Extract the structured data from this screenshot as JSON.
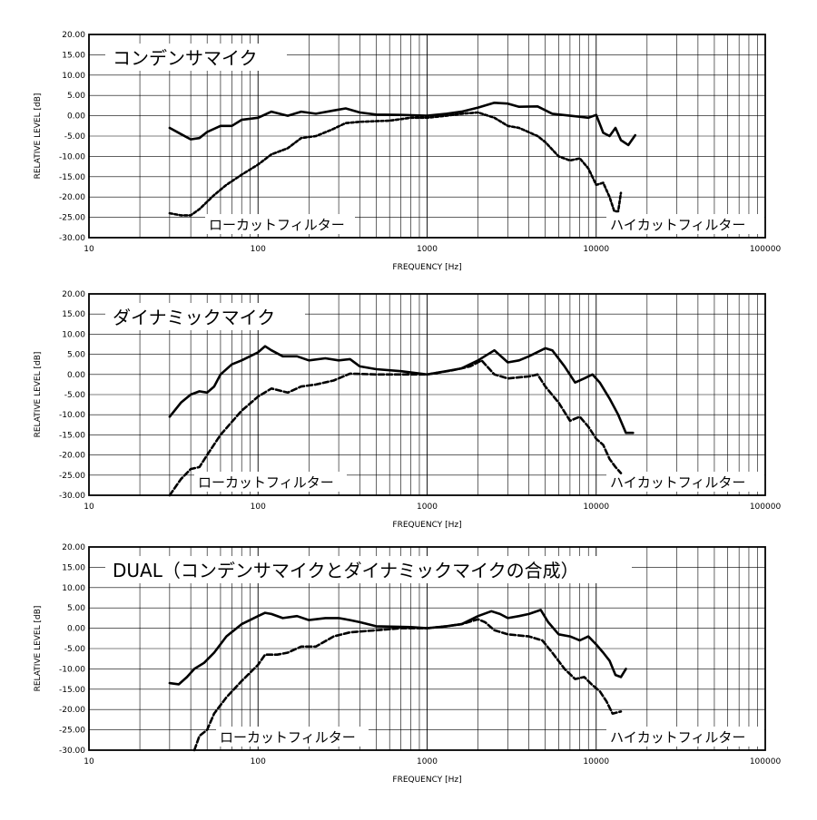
{
  "chart_data": [
    {
      "type": "line",
      "title": "コンデンサマイク",
      "xlabel": "FREQUENCY [Hz]",
      "ylabel": "RELATIVE LEVEL [dB]",
      "x_scale": "log",
      "xlim": [
        10,
        100000
      ],
      "ylim": [
        -30,
        20
      ],
      "x_ticks": [
        "10",
        "100",
        "1000",
        "10000",
        "100000"
      ],
      "y_ticks": [
        "20.00",
        "15.00",
        "10.00",
        "5.00",
        "0.00",
        "-5.00",
        "-10.00",
        "-15.00",
        "-20.00",
        "-25.00",
        "-30.00"
      ],
      "grid": true,
      "annotations": {
        "low_cut": "ローカットフィルター",
        "high_cut": "ハイカットフィルター"
      },
      "series": [
        {
          "style": "solid",
          "points": [
            [
              30,
              -3
            ],
            [
              35,
              -4.5
            ],
            [
              40,
              -5.8
            ],
            [
              45,
              -5.5
            ],
            [
              50,
              -4
            ],
            [
              60,
              -2.5
            ],
            [
              70,
              -2.5
            ],
            [
              80,
              -1
            ],
            [
              100,
              -0.5
            ],
            [
              120,
              1
            ],
            [
              150,
              0
            ],
            [
              180,
              1
            ],
            [
              220,
              0.5
            ],
            [
              280,
              1.3
            ],
            [
              330,
              1.8
            ],
            [
              400,
              0.8
            ],
            [
              500,
              0.3
            ],
            [
              700,
              0.2
            ],
            [
              1000,
              0
            ],
            [
              1300,
              0.5
            ],
            [
              1600,
              1
            ],
            [
              2000,
              2
            ],
            [
              2500,
              3.2
            ],
            [
              3000,
              3
            ],
            [
              3500,
              2.2
            ],
            [
              4500,
              2.3
            ],
            [
              5500,
              0.5
            ],
            [
              7000,
              0
            ],
            [
              9000,
              -0.5
            ],
            [
              10000,
              0.2
            ],
            [
              11000,
              -4.2
            ],
            [
              12000,
              -5
            ],
            [
              13000,
              -3
            ],
            [
              14000,
              -6
            ],
            [
              15500,
              -7.2
            ],
            [
              17000,
              -4.8
            ]
          ]
        },
        {
          "style": "dashed",
          "points": [
            [
              30,
              -24
            ],
            [
              35,
              -24.5
            ],
            [
              40,
              -24.5
            ],
            [
              45,
              -23
            ],
            [
              55,
              -19.5
            ],
            [
              65,
              -17
            ],
            [
              80,
              -14.5
            ],
            [
              100,
              -12
            ],
            [
              120,
              -9.5
            ],
            [
              150,
              -8
            ],
            [
              180,
              -5.5
            ],
            [
              220,
              -5
            ],
            [
              270,
              -3.5
            ],
            [
              330,
              -1.8
            ],
            [
              400,
              -1.5
            ],
            [
              600,
              -1.2
            ],
            [
              800,
              -0.5
            ],
            [
              1000,
              -0.5
            ],
            [
              1300,
              0
            ],
            [
              1600,
              0.5
            ],
            [
              2000,
              0.8
            ],
            [
              2500,
              -0.5
            ],
            [
              3000,
              -2.5
            ],
            [
              3500,
              -3
            ],
            [
              4500,
              -5
            ],
            [
              5000,
              -6.5
            ],
            [
              6000,
              -10
            ],
            [
              7000,
              -11
            ],
            [
              8000,
              -10.5
            ],
            [
              9000,
              -13
            ],
            [
              10000,
              -17
            ],
            [
              11000,
              -16.5
            ],
            [
              12000,
              -20
            ],
            [
              12800,
              -23.5
            ],
            [
              13500,
              -23.5
            ],
            [
              14000,
              -19
            ]
          ]
        }
      ]
    },
    {
      "type": "line",
      "title": "ダイナミックマイク",
      "xlabel": "FREQUENCY [Hz]",
      "ylabel": "RELATIVE LEVEL [dB]",
      "x_scale": "log",
      "xlim": [
        10,
        100000
      ],
      "ylim": [
        -30,
        20
      ],
      "x_ticks": [
        "10",
        "100",
        "1000",
        "10000",
        "100000"
      ],
      "y_ticks": [
        "20.00",
        "15.00",
        "10.00",
        "5.00",
        "0.00",
        "-5.00",
        "-10.00",
        "-15.00",
        "-20.00",
        "-25.00",
        "-30.00"
      ],
      "grid": true,
      "annotations": {
        "low_cut": "ローカットフィルター",
        "high_cut": "ハイカットフィルター"
      },
      "series": [
        {
          "style": "solid",
          "points": [
            [
              30,
              -10.5
            ],
            [
              35,
              -7
            ],
            [
              40,
              -5
            ],
            [
              45,
              -4.2
            ],
            [
              50,
              -4.5
            ],
            [
              55,
              -3
            ],
            [
              60,
              0
            ],
            [
              70,
              2.5
            ],
            [
              80,
              3.5
            ],
            [
              100,
              5.5
            ],
            [
              110,
              7
            ],
            [
              120,
              6
            ],
            [
              140,
              4.5
            ],
            [
              170,
              4.5
            ],
            [
              200,
              3.5
            ],
            [
              250,
              4
            ],
            [
              300,
              3.5
            ],
            [
              350,
              3.8
            ],
            [
              400,
              2
            ],
            [
              500,
              1.3
            ],
            [
              700,
              0.8
            ],
            [
              1000,
              0
            ],
            [
              1300,
              0.8
            ],
            [
              1600,
              1.5
            ],
            [
              2000,
              3.5
            ],
            [
              2500,
              6
            ],
            [
              3000,
              3
            ],
            [
              3500,
              3.5
            ],
            [
              4000,
              4.5
            ],
            [
              5000,
              6.5
            ],
            [
              5500,
              6
            ],
            [
              6500,
              2
            ],
            [
              7500,
              -2
            ],
            [
              8500,
              -1
            ],
            [
              9500,
              0
            ],
            [
              10500,
              -2
            ],
            [
              12000,
              -6
            ],
            [
              13500,
              -10
            ],
            [
              15000,
              -14.5
            ],
            [
              16500,
              -14.5
            ]
          ]
        },
        {
          "style": "dashed",
          "points": [
            [
              30,
              -30
            ],
            [
              35,
              -26
            ],
            [
              40,
              -23.5
            ],
            [
              45,
              -23
            ],
            [
              50,
              -20
            ],
            [
              60,
              -15
            ],
            [
              80,
              -9
            ],
            [
              100,
              -5.5
            ],
            [
              120,
              -3.5
            ],
            [
              150,
              -4.5
            ],
            [
              180,
              -3
            ],
            [
              220,
              -2.5
            ],
            [
              280,
              -1.5
            ],
            [
              350,
              0.2
            ],
            [
              500,
              0
            ],
            [
              800,
              0
            ],
            [
              1000,
              0
            ],
            [
              1400,
              1
            ],
            [
              1800,
              2
            ],
            [
              2100,
              3.5
            ],
            [
              2500,
              0
            ],
            [
              3000,
              -1
            ],
            [
              4000,
              -0.5
            ],
            [
              4500,
              0
            ],
            [
              5000,
              -3
            ],
            [
              6000,
              -7
            ],
            [
              7000,
              -11.5
            ],
            [
              8000,
              -10.5
            ],
            [
              9000,
              -13
            ],
            [
              10000,
              -16
            ],
            [
              11000,
              -17.5
            ],
            [
              12000,
              -21
            ],
            [
              13000,
              -23
            ],
            [
              14000,
              -24.5
            ]
          ]
        }
      ]
    },
    {
      "type": "line",
      "title": "DUAL（コンデンサマイクとダイナミックマイクの合成）",
      "xlabel": "FREQUENCY [Hz]",
      "ylabel": "RELATIVE LEVEL [dB]",
      "x_scale": "log",
      "xlim": [
        10,
        100000
      ],
      "ylim": [
        -30,
        20
      ],
      "x_ticks": [
        "10",
        "100",
        "1000",
        "10000",
        "100000"
      ],
      "y_ticks": [
        "20.00",
        "15.00",
        "10.00",
        "5.00",
        "0.00",
        "-5.00",
        "-10.00",
        "-15.00",
        "-20.00",
        "-25.00",
        "-30.00"
      ],
      "grid": true,
      "annotations": {
        "low_cut": "ローカットフィルター",
        "high_cut": "ハイカットフィルター"
      },
      "series": [
        {
          "style": "solid",
          "points": [
            [
              30,
              -13.5
            ],
            [
              34,
              -13.8
            ],
            [
              38,
              -12
            ],
            [
              42,
              -10
            ],
            [
              48,
              -8.5
            ],
            [
              55,
              -6
            ],
            [
              65,
              -2
            ],
            [
              80,
              1
            ],
            [
              100,
              3
            ],
            [
              110,
              3.8
            ],
            [
              120,
              3.5
            ],
            [
              140,
              2.5
            ],
            [
              170,
              3
            ],
            [
              200,
              2
            ],
            [
              250,
              2.5
            ],
            [
              300,
              2.5
            ],
            [
              350,
              2
            ],
            [
              400,
              1.5
            ],
            [
              500,
              0.5
            ],
            [
              800,
              0.3
            ],
            [
              1000,
              0
            ],
            [
              1300,
              0.5
            ],
            [
              1600,
              1
            ],
            [
              2000,
              3
            ],
            [
              2400,
              4.2
            ],
            [
              2700,
              3.5
            ],
            [
              3000,
              2.5
            ],
            [
              3500,
              3
            ],
            [
              4000,
              3.5
            ],
            [
              4700,
              4.5
            ],
            [
              5200,
              1.5
            ],
            [
              6000,
              -1.5
            ],
            [
              7000,
              -2
            ],
            [
              8000,
              -3
            ],
            [
              9000,
              -2
            ],
            [
              10000,
              -4
            ],
            [
              11000,
              -6
            ],
            [
              12000,
              -8
            ],
            [
              13000,
              -11.5
            ],
            [
              14000,
              -12
            ],
            [
              15000,
              -10
            ]
          ]
        },
        {
          "style": "dashed",
          "points": [
            [
              42,
              -30
            ],
            [
              45,
              -26.5
            ],
            [
              50,
              -25
            ],
            [
              55,
              -21
            ],
            [
              65,
              -17
            ],
            [
              80,
              -13
            ],
            [
              100,
              -9
            ],
            [
              110,
              -6.5
            ],
            [
              130,
              -6.5
            ],
            [
              150,
              -6
            ],
            [
              180,
              -4.5
            ],
            [
              220,
              -4.5
            ],
            [
              280,
              -2
            ],
            [
              350,
              -1
            ],
            [
              500,
              -0.5
            ],
            [
              700,
              0
            ],
            [
              1000,
              0
            ],
            [
              1300,
              0.5
            ],
            [
              1600,
              1
            ],
            [
              2000,
              2.2
            ],
            [
              2200,
              1.5
            ],
            [
              2500,
              -0.5
            ],
            [
              3000,
              -1.5
            ],
            [
              4000,
              -2
            ],
            [
              4800,
              -3
            ],
            [
              5500,
              -6
            ],
            [
              6500,
              -10
            ],
            [
              7500,
              -12.5
            ],
            [
              8500,
              -12
            ],
            [
              9500,
              -14
            ],
            [
              10500,
              -15.5
            ],
            [
              11500,
              -18
            ],
            [
              12500,
              -21
            ],
            [
              14000,
              -20.5
            ]
          ]
        }
      ]
    }
  ]
}
